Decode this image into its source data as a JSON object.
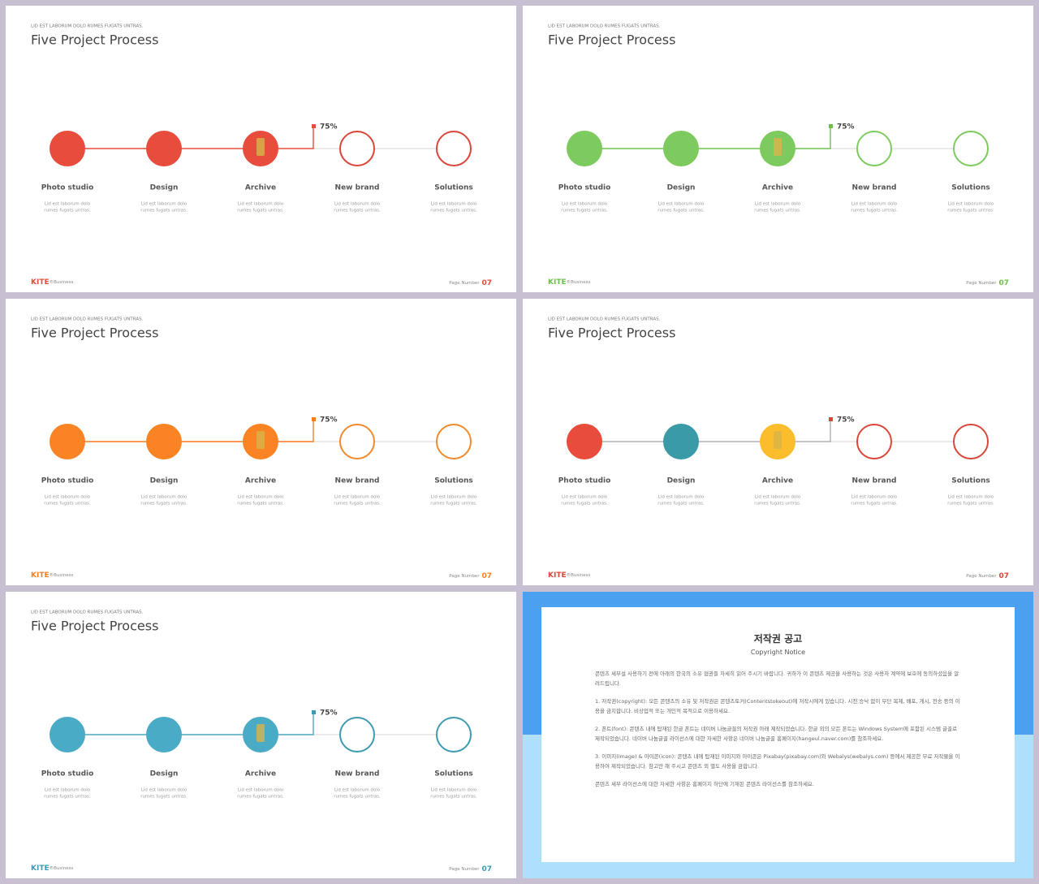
{
  "slides": [
    {
      "subtitle": "LID EST LABORUM DOLO RUMES FUGATS UNTRAS.",
      "title": "Five Project Process",
      "progress_label": "75%",
      "accent": "#e74c3c",
      "progress_line": "#e74c3c",
      "steps": [
        {
          "label": "Photo studio",
          "desc": [
            "Lid est laborum dolo",
            "rumes fugats untras."
          ],
          "color": "#e74c3c",
          "filled": true
        },
        {
          "label": "Design",
          "desc": [
            "Lid est laborum dolo",
            "rumes fugats untras."
          ],
          "color": "#e74c3c",
          "filled": true
        },
        {
          "label": "Archive",
          "desc": [
            "Lid est laborum dolo",
            "rumes fugats untras."
          ],
          "color": "#e74c3c",
          "filled": true
        },
        {
          "label": "New brand",
          "desc": [
            "Lid est laborum dolo",
            "rumes fugats untras."
          ],
          "color": "#d9463a",
          "filled": false
        },
        {
          "label": "Solutions",
          "desc": [
            "Lid est laborum dolo",
            "rumes fugats untras."
          ],
          "color": "#d9463a",
          "filled": false
        }
      ],
      "brand": "KITE",
      "brand_suffix": "®Business",
      "page_label": "Page Number",
      "page_number": "07"
    },
    {
      "subtitle": "LID EST LABORUM DOLO RUMES FUGATS UNTRAS.",
      "title": "Five Project Process",
      "progress_label": "75%",
      "accent": "#6cc04a",
      "progress_line": "#6cc04a",
      "steps": [
        {
          "label": "Photo studio",
          "desc": [
            "Lid est laborum dolo",
            "rumes fugats untras."
          ],
          "color": "#7dcb5f",
          "filled": true
        },
        {
          "label": "Design",
          "desc": [
            "Lid est laborum dolo",
            "rumes fugats untras."
          ],
          "color": "#7dcb5f",
          "filled": true
        },
        {
          "label": "Archive",
          "desc": [
            "Lid est laborum dolo",
            "rumes fugats untras."
          ],
          "color": "#7dcb5f",
          "filled": true
        },
        {
          "label": "New brand",
          "desc": [
            "Lid est laborum dolo",
            "rumes fugats untras."
          ],
          "color": "#7dcb5f",
          "filled": false
        },
        {
          "label": "Solutions",
          "desc": [
            "Lid est laborum dolo",
            "rumes fugats untras."
          ],
          "color": "#7dcb5f",
          "filled": false
        }
      ],
      "brand": "KITE",
      "brand_suffix": "®Business",
      "page_label": "Page Number",
      "page_number": "07"
    },
    {
      "subtitle": "LID EST LABORUM DOLO RUMES FUGATS UNTRAS.",
      "title": "Five Project Process",
      "progress_label": "75%",
      "accent": "#f57f20",
      "progress_line": "#f57f20",
      "steps": [
        {
          "label": "Photo studio",
          "desc": [
            "Lid est laborum dolo",
            "rumes fugats untras."
          ],
          "color": "#fa8423",
          "filled": true
        },
        {
          "label": "Design",
          "desc": [
            "Lid est laborum dolo",
            "rumes fugats untras."
          ],
          "color": "#fa8423",
          "filled": true
        },
        {
          "label": "Archive",
          "desc": [
            "Lid est laborum dolo",
            "rumes fugats untras."
          ],
          "color": "#fa8423",
          "filled": true
        },
        {
          "label": "New brand",
          "desc": [
            "Lid est laborum dolo",
            "rumes fugats untras."
          ],
          "color": "#f08a2c",
          "filled": false
        },
        {
          "label": "Solutions",
          "desc": [
            "Lid est laborum dolo",
            "rumes fugats untras."
          ],
          "color": "#f08a2c",
          "filled": false
        }
      ],
      "brand": "KITE",
      "brand_suffix": "®Business",
      "page_label": "Page Number",
      "page_number": "07"
    },
    {
      "subtitle": "LID EST LABORUM DOLO RUMES FUGATS UNTRAS.",
      "title": "Five Project Process",
      "progress_label": "75%",
      "accent": "#d9463a",
      "progress_line": "#b0b0b0",
      "steps": [
        {
          "label": "Photo studio",
          "desc": [
            "Lid est laborum dolo",
            "rumes fugats untras."
          ],
          "color": "#e74c3c",
          "filled": true
        },
        {
          "label": "Design",
          "desc": [
            "Lid est laborum dolo",
            "rumes fugats untras."
          ],
          "color": "#3b9aa8",
          "filled": true
        },
        {
          "label": "Archive",
          "desc": [
            "Lid est laborum dolo",
            "rumes fugats untras."
          ],
          "color": "#fbbd2c",
          "filled": true
        },
        {
          "label": "New brand",
          "desc": [
            "Lid est laborum dolo",
            "rumes fugats untras."
          ],
          "color": "#d9463a",
          "filled": false
        },
        {
          "label": "Solutions",
          "desc": [
            "Lid est laborum dolo",
            "rumes fugats untras."
          ],
          "color": "#d9463a",
          "filled": false
        }
      ],
      "brand": "KITE",
      "brand_suffix": "®Business",
      "page_label": "Page Number",
      "page_number": "07"
    },
    {
      "subtitle": "LID EST LABORUM DOLO RUMES FUGATS UNTRAS.",
      "title": "Five Project Process",
      "progress_label": "75%",
      "accent": "#3d9ab0",
      "progress_line": "#4aa8c0",
      "steps": [
        {
          "label": "Photo studio",
          "desc": [
            "Lid est laborum dolo",
            "rumes fugats untras."
          ],
          "color": "#4aabc6",
          "filled": true
        },
        {
          "label": "Design",
          "desc": [
            "Lid est laborum dolo",
            "rumes fugats untras."
          ],
          "color": "#4aabc6",
          "filled": true
        },
        {
          "label": "Archive",
          "desc": [
            "Lid est laborum dolo",
            "rumes fugats untras."
          ],
          "color": "#4aabc6",
          "filled": true
        },
        {
          "label": "New brand",
          "desc": [
            "Lid est laborum dolo",
            "rumes fugats untras."
          ],
          "color": "#3d9ab0",
          "filled": false
        },
        {
          "label": "Solutions",
          "desc": [
            "Lid est laborum dolo",
            "rumes fugats untras."
          ],
          "color": "#3d9ab0",
          "filled": false
        }
      ],
      "brand": "KITE",
      "brand_suffix": "®Business",
      "page_label": "Page Number",
      "page_number": "07"
    }
  ],
  "notice": {
    "title": "저작권 공고",
    "subtitle": "Copyright Notice",
    "paragraphs": [
      "콘텐츠 세부설 사용하기 전에 아래의 한국의 소유 협권들 자세히 읽어 주시기 바랍니다. 귀하가 이 콘텐츠 제공을 사용하는 것은 사용자 계약에 보호에 동의하셨음을 알려드립니다.",
      "1. 저작권(copyright): 모든 콘텐츠의 소유 및 저작권은 콘텐츠토커(Contentstokeout)에 저작시에게 있습니다. 시전 승낙 없이 무단 복제, 배포, 게시, 전송 등의 이용을 금지합니다. 비상업적 또는 개인적 목적으로 이용하세요.",
      "2. 폰트(font): 콘텐츠 내에 탑재된 한글 폰트는 네이버 나눔글꼴의 저작권 아래 제작되었습니다. 한글 외의 모든 폰트는 Windows System에 포함된 시스템 글꼴로 제작되었습니다. 네이버 나눔글꼴 라이선스에 대한 자세한 사항은 네이버 나눔글꼴 홈페이지(hangeul.naver.com)를 참조하세요.",
      "3. 이미지(image) & 아이콘(icon): 콘텐츠 내에 탑재된 이미지와 아이콘은 Pixabay(pixabay.com)와 Webalys(webalys.com) 등에서 제공한 무료 저작물을 이용하여 제작되었습니다. 참고만 해 주시고 콘텐츠 외 별도 사용을 금합니다.",
      "콘텐츠 세부 라이선스에 대한 자세한 사항은 홈페이지 하단에 기재된 콘텐츠 라이선스를 참조하세요."
    ]
  }
}
